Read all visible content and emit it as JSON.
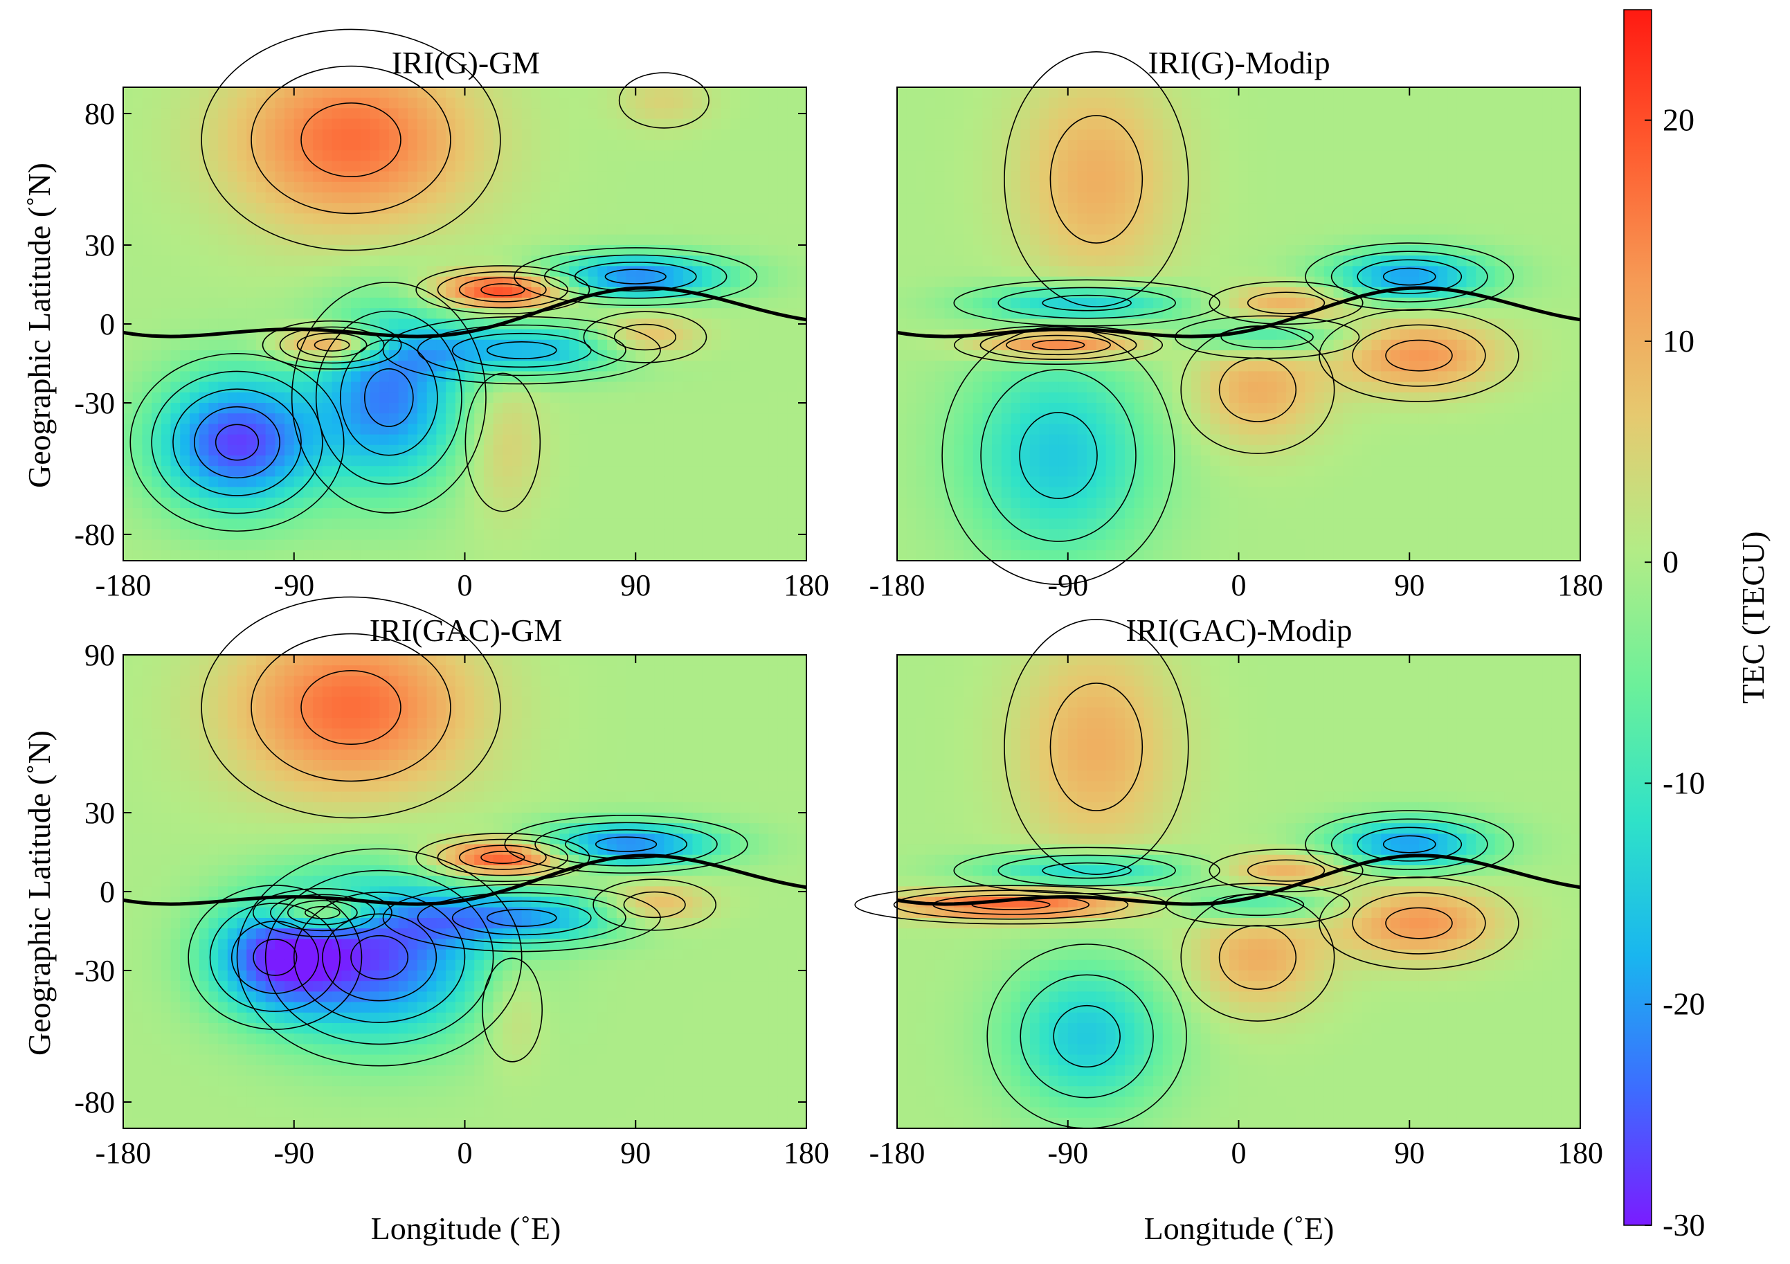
{
  "chart_data": {
    "type": "heatmap",
    "colorbar": {
      "label": "TEC (TECU)",
      "range": [
        -30,
        25
      ],
      "ticks": [
        20,
        10,
        0,
        -10,
        -20,
        -30
      ],
      "colormap": "rainbow",
      "colors": [
        "#7a1cff",
        "#3d6cff",
        "#19b6ef",
        "#2fe2c8",
        "#6cf09a",
        "#b3ec86",
        "#e6c96f",
        "#f69a55",
        "#ff5a2e",
        "#ff1a12"
      ]
    },
    "panels": [
      {
        "title": "IRI(G)-GM",
        "xlabel": "",
        "ylabel": "Geographic Latitude (˚N)",
        "xlim": [
          -180,
          180
        ],
        "ylim": [
          -90,
          90
        ],
        "xticks": [
          "-180",
          "-90",
          "0",
          "90",
          "180"
        ],
        "yticks": [
          "80",
          "30",
          "0",
          "-30",
          "-80"
        ],
        "features": [
          {
            "kind": "max",
            "lon": -60,
            "lat": 70,
            "value": 17,
            "sx": 45,
            "sy": 24
          },
          {
            "kind": "max",
            "lon": 105,
            "lat": 85,
            "value": 5,
            "sx": 18,
            "sy": 8
          },
          {
            "kind": "max",
            "lon": 20,
            "lat": 13,
            "value": 22,
            "sx": 25,
            "sy": 5
          },
          {
            "kind": "max",
            "lon": -70,
            "lat": -8,
            "value": 18,
            "sx": 20,
            "sy": 5
          },
          {
            "kind": "max",
            "lon": 95,
            "lat": -5,
            "value": 10,
            "sx": 20,
            "sy": 6
          },
          {
            "kind": "max",
            "lon": 20,
            "lat": -45,
            "value": 6,
            "sx": 15,
            "sy": 20
          },
          {
            "kind": "min",
            "lon": -120,
            "lat": -45,
            "value": -27,
            "sx": 30,
            "sy": 18
          },
          {
            "kind": "min",
            "lon": -40,
            "lat": -28,
            "value": -22,
            "sx": 28,
            "sy": 24
          },
          {
            "kind": "min",
            "lon": 30,
            "lat": -10,
            "value": -18,
            "sx": 40,
            "sy": 7
          },
          {
            "kind": "min",
            "lon": 90,
            "lat": 18,
            "value": -22,
            "sx": 35,
            "sy": 6
          }
        ]
      },
      {
        "title": "IRI(G)-Modip",
        "xlabel": "",
        "ylabel": "",
        "xlim": [
          -180,
          180
        ],
        "ylim": [
          -90,
          90
        ],
        "xticks": [
          "-180",
          "-90",
          "0",
          "90",
          "180"
        ],
        "yticks": [],
        "features": [
          {
            "kind": "max",
            "lon": -75,
            "lat": 55,
            "value": 10,
            "sx": 30,
            "sy": 30
          },
          {
            "kind": "max",
            "lon": -95,
            "lat": -8,
            "value": 18,
            "sx": 30,
            "sy": 4
          },
          {
            "kind": "max",
            "lon": 25,
            "lat": 8,
            "value": 10,
            "sx": 25,
            "sy": 5
          },
          {
            "kind": "max",
            "lon": 10,
            "lat": -25,
            "value": 10,
            "sx": 25,
            "sy": 15
          },
          {
            "kind": "max",
            "lon": 95,
            "lat": -12,
            "value": 13,
            "sx": 30,
            "sy": 10
          },
          {
            "kind": "min",
            "lon": -95,
            "lat": -50,
            "value": -15,
            "sx": 35,
            "sy": 28
          },
          {
            "kind": "min",
            "lon": -80,
            "lat": 8,
            "value": -15,
            "sx": 40,
            "sy": 5
          },
          {
            "kind": "min",
            "lon": 90,
            "lat": 18,
            "value": -20,
            "sx": 30,
            "sy": 7
          },
          {
            "kind": "min",
            "lon": 15,
            "lat": -5,
            "value": -12,
            "sx": 30,
            "sy": 5
          }
        ]
      },
      {
        "title": "IRI(GAC)-GM",
        "xlabel": "Longitude (˚E)",
        "ylabel": "Geographic Latitude (˚N)",
        "xlim": [
          -180,
          180
        ],
        "ylim": [
          -90,
          90
        ],
        "xticks": [
          "-180",
          "-90",
          "0",
          "90",
          "180"
        ],
        "yticks": [
          "90",
          "30",
          "0",
          "-30",
          "-80"
        ],
        "features": [
          {
            "kind": "max",
            "lon": -60,
            "lat": 70,
            "value": 17,
            "sx": 45,
            "sy": 24
          },
          {
            "kind": "max",
            "lon": 20,
            "lat": 13,
            "value": 22,
            "sx": 25,
            "sy": 5
          },
          {
            "kind": "max",
            "lon": -75,
            "lat": -8,
            "value": 18,
            "sx": 20,
            "sy": 5
          },
          {
            "kind": "max",
            "lon": 100,
            "lat": -5,
            "value": 10,
            "sx": 20,
            "sy": 6
          },
          {
            "kind": "max",
            "lon": 25,
            "lat": -45,
            "value": 5,
            "sx": 12,
            "sy": 15
          },
          {
            "kind": "min",
            "lon": -45,
            "lat": -25,
            "value": -25,
            "sx": 40,
            "sy": 22
          },
          {
            "kind": "min",
            "lon": -100,
            "lat": -25,
            "value": -22,
            "sx": 25,
            "sy": 15
          },
          {
            "kind": "min",
            "lon": 30,
            "lat": -10,
            "value": -18,
            "sx": 40,
            "sy": 7
          },
          {
            "kind": "min",
            "lon": 85,
            "lat": 18,
            "value": -22,
            "sx": 35,
            "sy": 6
          }
        ]
      },
      {
        "title": "IRI(GAC)-Modip",
        "xlabel": "Longitude (˚E)",
        "ylabel": "",
        "xlim": [
          -180,
          180
        ],
        "ylim": [
          -90,
          90
        ],
        "xticks": [
          "-180",
          "-90",
          "0",
          "90",
          "180"
        ],
        "yticks": [],
        "features": [
          {
            "kind": "max",
            "lon": -75,
            "lat": 55,
            "value": 10,
            "sx": 30,
            "sy": 30
          },
          {
            "kind": "max",
            "lon": -120,
            "lat": -5,
            "value": 18,
            "sx": 45,
            "sy": 4
          },
          {
            "kind": "max",
            "lon": 25,
            "lat": 8,
            "value": 10,
            "sx": 25,
            "sy": 5
          },
          {
            "kind": "max",
            "lon": 10,
            "lat": -25,
            "value": 10,
            "sx": 25,
            "sy": 15
          },
          {
            "kind": "max",
            "lon": 95,
            "lat": -12,
            "value": 13,
            "sx": 30,
            "sy": 10
          },
          {
            "kind": "min",
            "lon": -80,
            "lat": -55,
            "value": -15,
            "sx": 30,
            "sy": 20
          },
          {
            "kind": "min",
            "lon": -80,
            "lat": 8,
            "value": -15,
            "sx": 40,
            "sy": 5
          },
          {
            "kind": "min",
            "lon": 90,
            "lat": 18,
            "value": -20,
            "sx": 30,
            "sy": 7
          },
          {
            "kind": "min",
            "lon": 10,
            "lat": -5,
            "value": -12,
            "sx": 30,
            "sy": 5
          }
        ]
      }
    ]
  }
}
